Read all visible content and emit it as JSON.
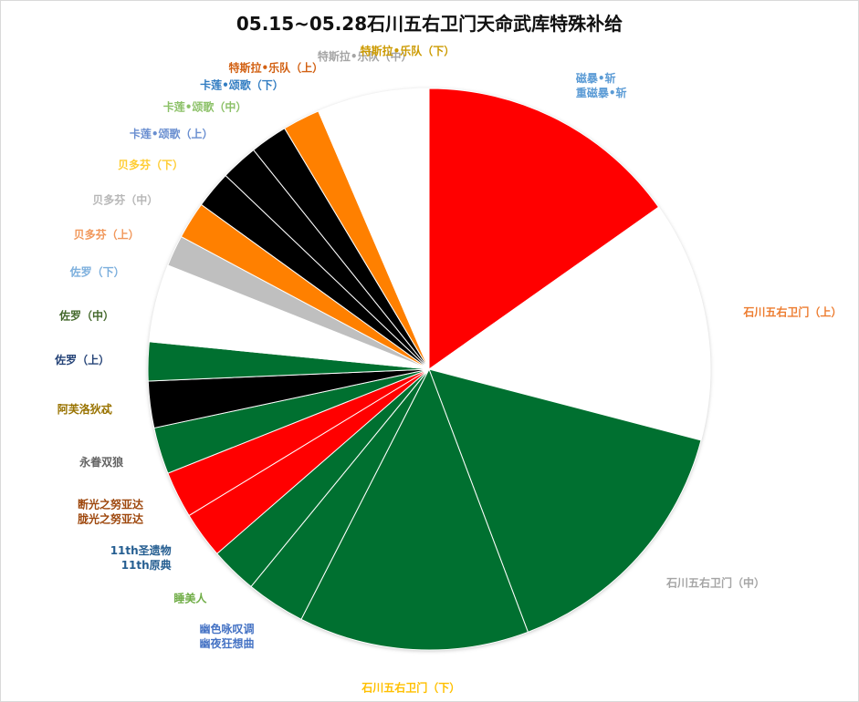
{
  "chart_data": {
    "type": "pie",
    "title": "05.15~05.28石川五右卫门天命武库特殊补给",
    "slices": [
      {
        "label": "磁暴•斩\n重磁暴•斩",
        "value": 17.0,
        "color": "#ff0000",
        "label_color": "#5b9bd5"
      },
      {
        "label": "石川五右卫门（上）",
        "value": 15.5,
        "color": "#ffffff",
        "label_color": "#ed7d31"
      },
      {
        "label": "石川五右卫门（中）",
        "value": 17.0,
        "color": "#007030",
        "label_color": "#a5a5a5"
      },
      {
        "label": "石川五右卫门（下）",
        "value": 14.8,
        "color": "#007030",
        "label_color": "#ffc000"
      },
      {
        "label": "幽色咏叹调\n幽夜狂想曲",
        "value": 3.8,
        "color": "#007030",
        "label_color": "#4472c4"
      },
      {
        "label": "睡美人",
        "value": 3.0,
        "color": "#007030",
        "label_color": "#70ad47"
      },
      {
        "label": "11th圣遗物\n11th原典",
        "value": 3.0,
        "color": "#ff0000",
        "label_color": "#255e91"
      },
      {
        "label": "断光之努亚达\n胧光之努亚达",
        "value": 3.0,
        "color": "#ff0000",
        "label_color": "#9e480e"
      },
      {
        "label": "永眷双狼",
        "value": 3.0,
        "color": "#007030",
        "label_color": "#636363"
      },
      {
        "label": "阿芙洛狄忒",
        "value": 3.0,
        "color": "#000000",
        "label_color": "#997300"
      },
      {
        "label": "佐罗（上）",
        "value": 2.5,
        "color": "#007030",
        "label_color": "#264478"
      },
      {
        "label": "佐罗（中）",
        "value": 2.5,
        "color": "#ffffff",
        "label_color": "#43682b"
      },
      {
        "label": "佐罗（下）",
        "value": 2.5,
        "color": "#ffffff",
        "label_color": "#7cafdd"
      },
      {
        "label": "贝多芬（上）",
        "value": 2.0,
        "color": "#bfbfbf",
        "label_color": "#f1975a"
      },
      {
        "label": "贝多芬（中）",
        "value": 2.4,
        "color": "#ff8000",
        "label_color": "#b7b7b7"
      },
      {
        "label": "贝多芬（下）",
        "value": 2.4,
        "color": "#000000",
        "label_color": "#ffcd33"
      },
      {
        "label": "卡莲•颂歌（上）",
        "value": 2.4,
        "color": "#000000",
        "label_color": "#698ed0"
      },
      {
        "label": "卡莲•颂歌（中）",
        "value": 2.4,
        "color": "#000000",
        "label_color": "#8cc168"
      },
      {
        "label": "卡莲•颂歌（下）",
        "value": 2.4,
        "color": "#ff8000",
        "label_color": "#327dc2"
      },
      {
        "label": "特斯拉•乐队（上）",
        "value": 2.4,
        "color": "#ffffff",
        "label_color": "#d26012"
      },
      {
        "label": "特斯拉•乐队（中）",
        "value": 2.4,
        "color": "#ffffff",
        "label_color": "#a5a5a5"
      },
      {
        "label": "特斯拉•乐队（下）",
        "value": 2.4,
        "color": "#ffffff",
        "label_color": "#cc9a00"
      }
    ],
    "legend": "none",
    "labels": "outside"
  }
}
